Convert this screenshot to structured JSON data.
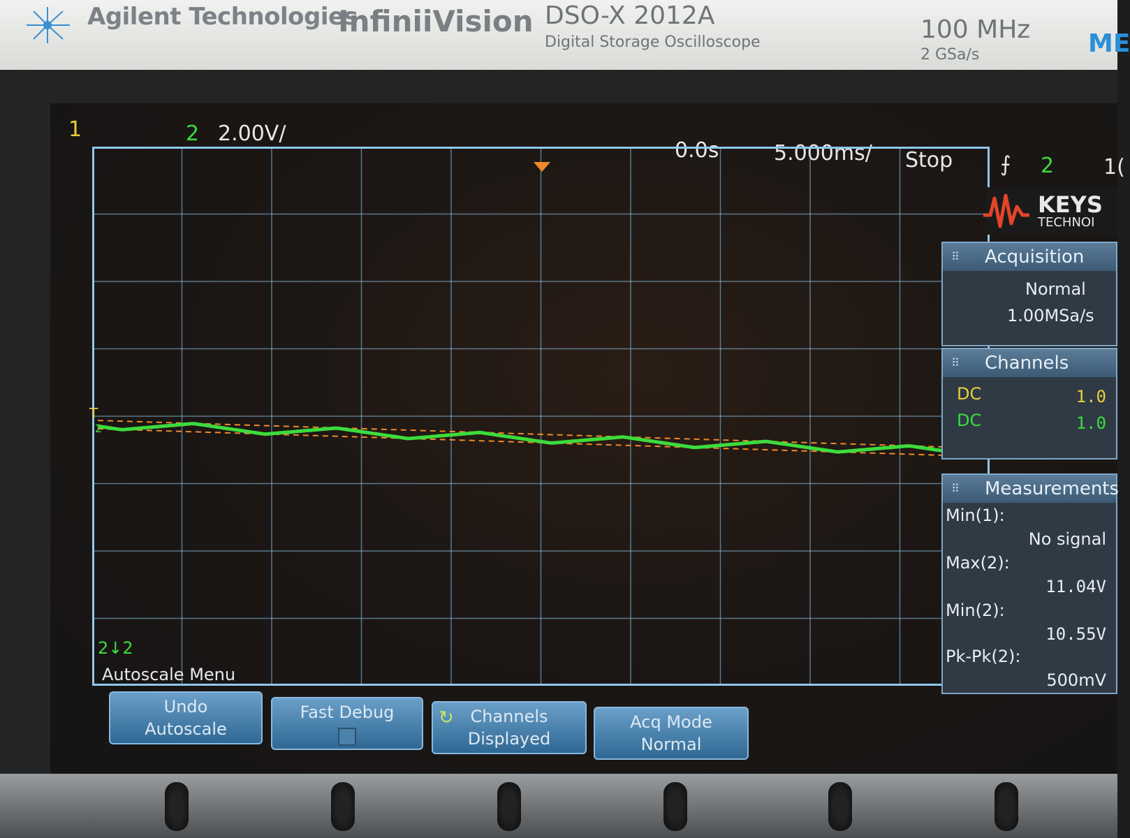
{
  "header": {
    "brand": "Agilent Technologies",
    "series": "InfiniiVision",
    "model": "DSO-X 2012A",
    "model_desc": "Digital Storage Oscilloscope",
    "bandwidth": "100 MHz",
    "sample_rate": "2 GSa/s",
    "menu_tag": "ME"
  },
  "status": {
    "ch1_number": "1",
    "ch2_number": "2",
    "ch2_scale": "2.00V/",
    "horizontal_position": "0.0s",
    "horizontal_scale": "5.000ms/",
    "run_state": "Stop",
    "trigger_slope": "⨍",
    "trigger_source": "2",
    "trigger_extra": "1("
  },
  "markers": {
    "trigger_label": "T",
    "ch2_ground": "2",
    "ch2_bottom": "2↓2"
  },
  "brand_panel": {
    "name": "KEYS",
    "sub": "TECHNOI"
  },
  "acquisition": {
    "title": "Acquisition",
    "mode": "Normal",
    "rate": "1.00MSa/s"
  },
  "channels": {
    "title": "Channels",
    "rows": [
      {
        "coupling": "DC",
        "value": "1.0"
      },
      {
        "coupling": "DC",
        "value": "1.0"
      }
    ]
  },
  "measurements": {
    "title": "Measurements",
    "items": [
      {
        "label": "Min(1):",
        "value": "No signal"
      },
      {
        "label": "Max(2):",
        "value": "11.04V"
      },
      {
        "label": "Min(2):",
        "value": "10.55V"
      },
      {
        "label": "Pk-Pk(2):",
        "value": "500mV"
      }
    ]
  },
  "softkeys": {
    "menu_title": "Autoscale Menu",
    "keys": [
      {
        "line1": "Undo",
        "line2": "Autoscale"
      },
      {
        "line1": "Fast Debug",
        "line2": ""
      },
      {
        "line1": "Channels",
        "line2": "Displayed"
      },
      {
        "line1": "Acq Mode",
        "line2": "Normal"
      }
    ]
  },
  "colors": {
    "ch1": "#e6d13a",
    "ch2": "#3cdc3c",
    "trigger": "#f08a2a",
    "grid": "#8fc8f0"
  }
}
